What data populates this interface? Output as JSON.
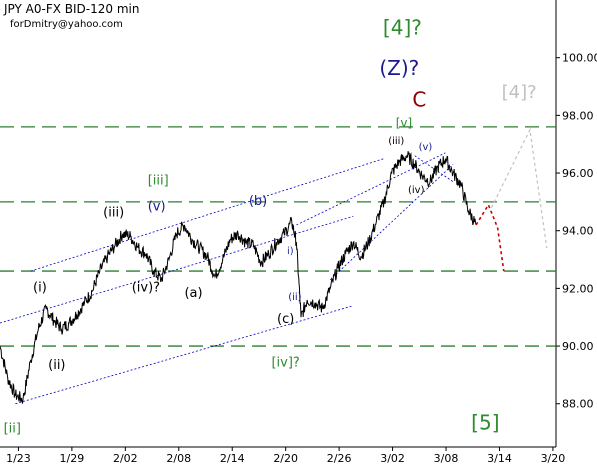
{
  "header": {
    "title": "JPY A0-FX BID-120 min",
    "author": "forDmitry@yahoo.com"
  },
  "colors": {
    "price": "#000000",
    "channel": "#0000cc",
    "hline": "#2e7d32",
    "label_green": "#2e8b2e",
    "label_black": "#000000",
    "label_navy": "#1a1a8c",
    "label_red": "#8b0000",
    "label_blue": "#1f2fa0",
    "forecast_red": "#cc0000",
    "forecast_gray": "#c0c0c0"
  },
  "chart_data": {
    "type": "line",
    "x_ticks": [
      "1/23",
      "1/29",
      "2/02",
      "2/08",
      "2/14",
      "2/20",
      "2/26",
      "3/02",
      "3/08",
      "3/14",
      "3/20"
    ],
    "y_ticks": [
      "88.00",
      "90.00",
      "92.00",
      "94.00",
      "96.00",
      "98.00",
      "100.00"
    ],
    "ylim": [
      86.5,
      102.0
    ],
    "grid": false,
    "series": [
      {
        "values": [
          {
            "x": 0,
            "y": 90.0
          },
          {
            "x": 0.5,
            "y": 88.9
          },
          {
            "x": 1.0,
            "y": 88.3
          },
          {
            "x": 1.5,
            "y": 88.15
          },
          {
            "x": 2.0,
            "y": 89.5
          },
          {
            "x": 2.5,
            "y": 90.6
          },
          {
            "x": 3.0,
            "y": 91.3
          },
          {
            "x": 3.5,
            "y": 90.9
          },
          {
            "x": 4.0,
            "y": 90.6
          },
          {
            "x": 4.5,
            "y": 90.8
          },
          {
            "x": 5.0,
            "y": 91.1
          },
          {
            "x": 5.5,
            "y": 91.5
          },
          {
            "x": 6.0,
            "y": 91.9
          },
          {
            "x": 6.5,
            "y": 92.6
          },
          {
            "x": 7.0,
            "y": 93.1
          },
          {
            "x": 7.5,
            "y": 93.5
          },
          {
            "x": 8.0,
            "y": 93.9
          },
          {
            "x": 8.5,
            "y": 93.8
          },
          {
            "x": 9.0,
            "y": 93.4
          },
          {
            "x": 9.5,
            "y": 93.2
          },
          {
            "x": 10.0,
            "y": 92.6
          },
          {
            "x": 10.5,
            "y": 92.3
          },
          {
            "x": 11.0,
            "y": 93.0
          },
          {
            "x": 11.5,
            "y": 93.9
          },
          {
            "x": 12.0,
            "y": 94.2
          },
          {
            "x": 12.5,
            "y": 93.7
          },
          {
            "x": 13.0,
            "y": 93.4
          },
          {
            "x": 13.5,
            "y": 93.1
          },
          {
            "x": 14.0,
            "y": 92.4
          },
          {
            "x": 14.5,
            "y": 93.0
          },
          {
            "x": 15.0,
            "y": 93.7
          },
          {
            "x": 15.5,
            "y": 93.9
          },
          {
            "x": 16.0,
            "y": 93.6
          },
          {
            "x": 16.5,
            "y": 93.5
          },
          {
            "x": 17.0,
            "y": 92.9
          },
          {
            "x": 17.5,
            "y": 93.2
          },
          {
            "x": 18.0,
            "y": 93.6
          },
          {
            "x": 18.5,
            "y": 93.9
          },
          {
            "x": 19.0,
            "y": 94.3
          },
          {
            "x": 19.3,
            "y": 93.6
          },
          {
            "x": 19.6,
            "y": 91.0
          },
          {
            "x": 20.0,
            "y": 91.6
          },
          {
            "x": 20.5,
            "y": 91.5
          },
          {
            "x": 21.0,
            "y": 91.3
          },
          {
            "x": 21.5,
            "y": 92.0
          },
          {
            "x": 22.0,
            "y": 92.7
          },
          {
            "x": 22.5,
            "y": 93.2
          },
          {
            "x": 23.0,
            "y": 93.6
          },
          {
            "x": 23.5,
            "y": 93.1
          },
          {
            "x": 24.0,
            "y": 93.6
          },
          {
            "x": 24.5,
            "y": 94.3
          },
          {
            "x": 25.0,
            "y": 95.0
          },
          {
            "x": 25.5,
            "y": 96.0
          },
          {
            "x": 26.0,
            "y": 96.4
          },
          {
            "x": 26.5,
            "y": 96.6
          },
          {
            "x": 27.0,
            "y": 96.3
          },
          {
            "x": 27.5,
            "y": 95.9
          },
          {
            "x": 28.0,
            "y": 95.7
          },
          {
            "x": 28.5,
            "y": 96.2
          },
          {
            "x": 29.0,
            "y": 96.5
          },
          {
            "x": 29.5,
            "y": 96.0
          },
          {
            "x": 30.0,
            "y": 95.6
          },
          {
            "x": 30.5,
            "y": 94.7
          },
          {
            "x": 31.0,
            "y": 94.2
          }
        ]
      }
    ],
    "horizontal_levels": [
      97.6,
      95.0,
      92.6,
      90.0
    ],
    "channels": [
      {
        "from": {
          "x": 2.0,
          "y": 92.6
        },
        "to": {
          "x": 25.0,
          "y": 96.5
        }
      },
      {
        "from": {
          "x": 0.0,
          "y": 90.8
        },
        "to": {
          "x": 23.0,
          "y": 94.5
        }
      },
      {
        "from": {
          "x": 1.0,
          "y": 88.0
        },
        "to": {
          "x": 23.0,
          "y": 91.4
        }
      },
      {
        "from": {
          "x": 21.5,
          "y": 92.3
        },
        "to": {
          "x": 29.5,
          "y": 96.3
        }
      },
      {
        "from": {
          "x": 19.3,
          "y": 94.2
        },
        "to": {
          "x": 29.0,
          "y": 96.7
        }
      },
      {
        "from": {
          "x": 27.0,
          "y": 96.6
        },
        "to": {
          "x": 29.5,
          "y": 95.7
        }
      }
    ],
    "forecast_red": [
      {
        "x": 31.0,
        "y": 94.2
      },
      {
        "x": 31.8,
        "y": 94.9
      },
      {
        "x": 32.4,
        "y": 94.1
      },
      {
        "x": 32.8,
        "y": 92.6
      }
    ],
    "forecast_gray": [
      {
        "x": 32.0,
        "y": 94.8
      },
      {
        "x": 34.5,
        "y": 97.5
      },
      {
        "x": 35.6,
        "y": 93.4
      }
    ],
    "annotations": [
      {
        "text": "[4]?",
        "x": 26.2,
        "y": 100.8,
        "color": "label_green",
        "size": 20
      },
      {
        "text": "(Z)?",
        "x": 26.0,
        "y": 99.4,
        "color": "label_navy",
        "size": 20
      },
      {
        "text": "C",
        "x": 27.3,
        "y": 98.3,
        "color": "label_red",
        "size": 20
      },
      {
        "text": "[4]?",
        "x": 33.8,
        "y": 98.6,
        "color": "forecast_gray",
        "size": 18
      },
      {
        "text": "[v]",
        "x": 26.3,
        "y": 97.6,
        "color": "label_green",
        "size": 12
      },
      {
        "text": "(iii)",
        "x": 25.8,
        "y": 97.0,
        "color": "label_black",
        "size": 10
      },
      {
        "text": "(v)",
        "x": 27.7,
        "y": 96.8,
        "color": "label_navy",
        "size": 10
      },
      {
        "text": "(iv)",
        "x": 27.1,
        "y": 95.3,
        "color": "label_black",
        "size": 10
      },
      {
        "text": "[iii]",
        "x": 10.3,
        "y": 95.6,
        "color": "label_green",
        "size": 13
      },
      {
        "text": "(iii)",
        "x": 7.4,
        "y": 94.5,
        "color": "label_black",
        "size": 13
      },
      {
        "text": "(v)",
        "x": 10.2,
        "y": 94.7,
        "color": "label_navy",
        "size": 13
      },
      {
        "text": "(b)",
        "x": 16.8,
        "y": 94.9,
        "color": "label_navy",
        "size": 13
      },
      {
        "text": "i)",
        "x": 18.9,
        "y": 93.2,
        "color": "label_blue",
        "size": 10
      },
      {
        "text": "(i)",
        "x": 2.6,
        "y": 91.9,
        "color": "label_black",
        "size": 13
      },
      {
        "text": "(iv)?",
        "x": 9.5,
        "y": 91.9,
        "color": "label_black",
        "size": 13
      },
      {
        "text": "(a)",
        "x": 12.6,
        "y": 91.7,
        "color": "label_black",
        "size": 13
      },
      {
        "text": "(ii)",
        "x": 19.2,
        "y": 91.6,
        "color": "label_navy",
        "size": 10
      },
      {
        "text": "(c)",
        "x": 18.6,
        "y": 90.8,
        "color": "label_black",
        "size": 13
      },
      {
        "text": "(ii)",
        "x": 3.7,
        "y": 89.2,
        "color": "label_black",
        "size": 13
      },
      {
        "text": "[iv]?",
        "x": 18.6,
        "y": 89.3,
        "color": "label_green",
        "size": 13
      },
      {
        "text": "[ii]",
        "x": 0.8,
        "y": 87.0,
        "color": "label_green",
        "size": 13
      },
      {
        "text": "[5]",
        "x": 31.6,
        "y": 87.1,
        "color": "label_green",
        "size": 20
      }
    ]
  }
}
